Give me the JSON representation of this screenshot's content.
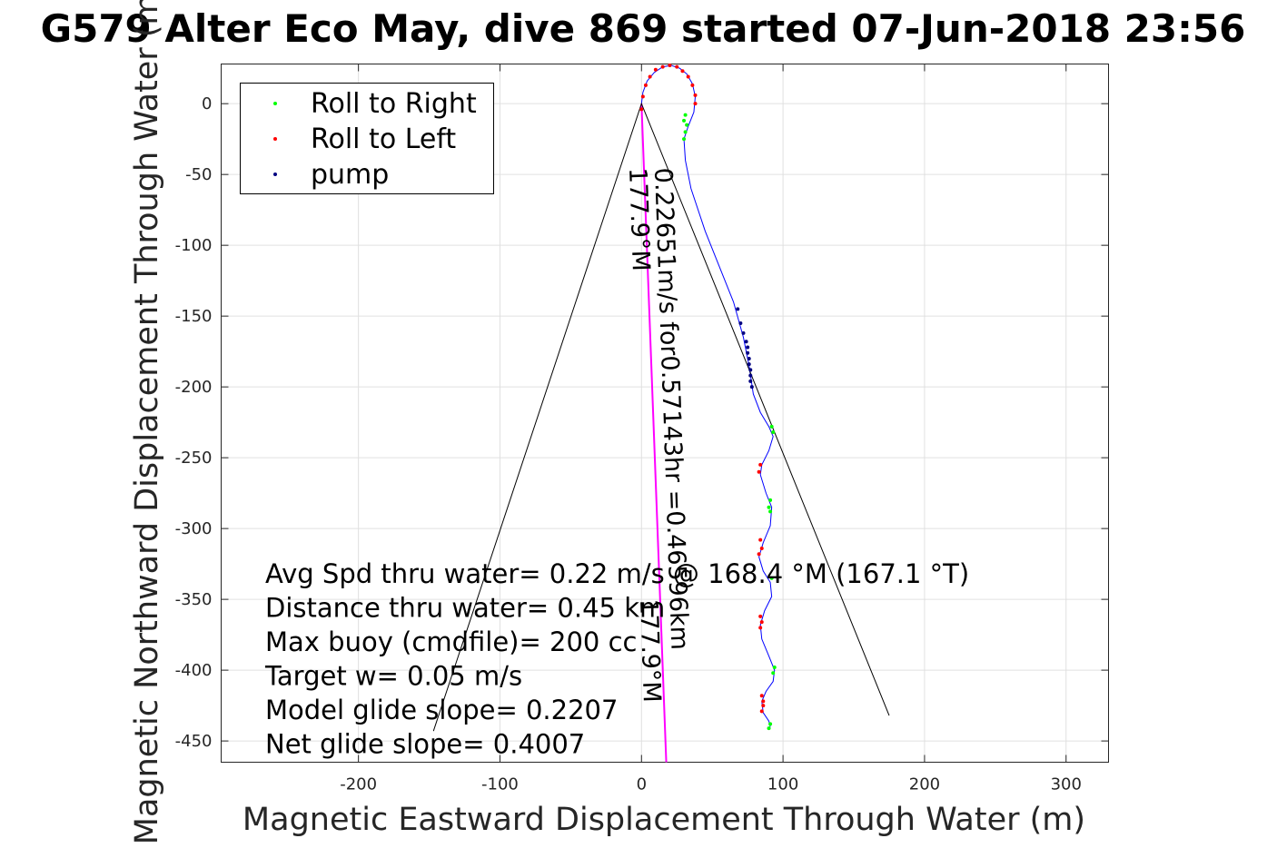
{
  "chart_data": {
    "type": "scatter",
    "title": "G579 Alter Eco May, dive 869 started 07-Jun-2018 23:56",
    "xlabel": "Magnetic Eastward Displacement Through Water (m)",
    "ylabel": "Magnetic Northward Displacement Through Water (m)",
    "xlim": [
      -297,
      330
    ],
    "ylim": [
      -465,
      28
    ],
    "grid": true,
    "legend_position": "top-left",
    "xticks": [
      -200,
      -100,
      0,
      100,
      200,
      300
    ],
    "yticks": [
      0,
      -50,
      -100,
      -150,
      -200,
      -250,
      -300,
      -350,
      -400,
      -450
    ],
    "series": [
      {
        "name": "Roll to Right",
        "color": "#00ff00",
        "marker": "point",
        "x": [
          32,
          31,
          30,
          30,
          31,
          92,
          93,
          91,
          90,
          91,
          92,
          94,
          93,
          91,
          90
        ],
        "y": [
          -15,
          -20,
          -25,
          -12,
          -8,
          -228,
          -232,
          -280,
          -285,
          -288,
          -335,
          -398,
          -402,
          -438,
          -441
        ]
      },
      {
        "name": "Roll to Left",
        "color": "#ff0000",
        "marker": "point",
        "x": [
          0,
          1,
          3,
          6,
          10,
          15,
          20,
          25,
          29,
          33,
          36,
          38,
          38,
          84,
          83,
          84,
          85,
          83,
          84,
          85,
          84,
          85,
          86,
          86,
          85
        ],
        "y": [
          -4,
          5,
          13,
          19,
          24,
          26,
          27,
          26,
          23,
          19,
          13,
          6,
          0,
          -255,
          -260,
          -308,
          -314,
          -318,
          -362,
          -366,
          -370,
          -418,
          -422,
          -425,
          -429
        ]
      },
      {
        "name": "pump",
        "color": "#000080",
        "marker": "point",
        "x": [
          68,
          70,
          72,
          74,
          75,
          75,
          76,
          76,
          77,
          77,
          77,
          78
        ],
        "y": [
          -145,
          -155,
          -162,
          -168,
          -172,
          -176,
          -180,
          -184,
          -188,
          -192,
          -196,
          -200
        ]
      },
      {
        "name": "",
        "color": "#0000ff",
        "marker": "line",
        "x": [
          0,
          1,
          4,
          9,
          15,
          21,
          27,
          32,
          36,
          38,
          37,
          33,
          30,
          31,
          35,
          45,
          55,
          65,
          72,
          76,
          79,
          84,
          90,
          93,
          90,
          85,
          84,
          88,
          92,
          91,
          86,
          83,
          86,
          91,
          92,
          87,
          84,
          85,
          90,
          94,
          93,
          88,
          85,
          86,
          90,
          91
        ],
        "y": [
          0,
          8,
          16,
          22,
          26,
          27,
          25,
          21,
          14,
          5,
          -6,
          -16,
          -25,
          -40,
          -60,
          -90,
          -115,
          -140,
          -165,
          -185,
          -205,
          -218,
          -228,
          -235,
          -245,
          -255,
          -262,
          -275,
          -285,
          -298,
          -310,
          -320,
          -330,
          -338,
          -348,
          -358,
          -368,
          -378,
          -390,
          -400,
          -408,
          -415,
          -422,
          -430,
          -436,
          -440
        ]
      },
      {
        "name": "",
        "color": "#ff00ff",
        "marker": "line",
        "x": [
          0,
          17.5
        ],
        "y": [
          0,
          -465
        ]
      },
      {
        "name": "",
        "color": "#000000",
        "marker": "line",
        "x": [
          -147,
          0,
          175
        ],
        "y": [
          -443,
          0,
          -432
        ]
      }
    ],
    "annotations": {
      "heading_label": "177.9°M",
      "speed_label": "0.22651m/s for0.57143hr =0.46596km",
      "heading_label_lower": "177.9°M",
      "stats": [
        "Avg Spd thru water=  0.22 m/s @ 168.4 °M (167.1 °T)",
        "Distance thru water=  0.45 km",
        "Max buoy (cmdfile)= 200 cc",
        "Target w= 0.05 m/s",
        "Model glide slope= 0.2207",
        "Net glide slope= 0.4007"
      ]
    }
  }
}
